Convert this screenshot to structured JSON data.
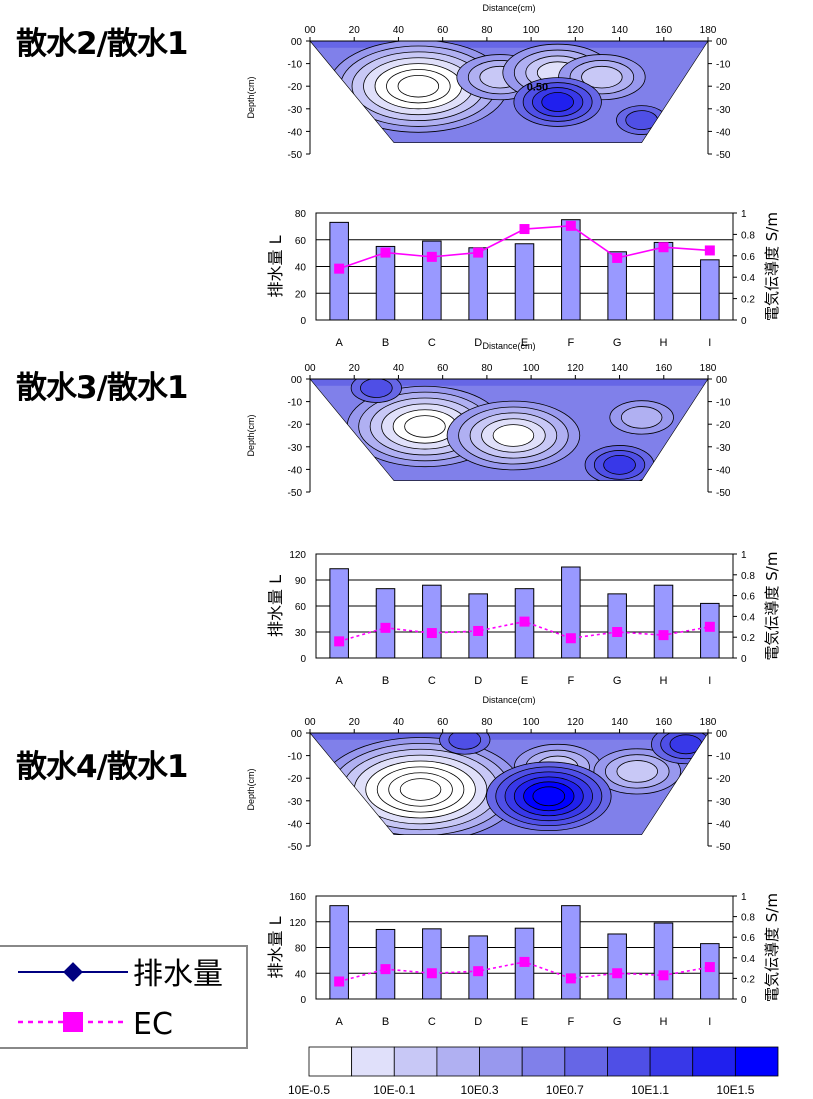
{
  "titles": [
    "散水2/散水1",
    "散水3/散水1",
    "散水4/散水1"
  ],
  "section_labels": {
    "distance_label": "Distance(cm)",
    "depth_label": "Depth(cm)",
    "drain_axis_label": "排水量 L",
    "ec_axis_label": "電気伝導度 S/m"
  },
  "legend": {
    "series": [
      {
        "name": "排水量",
        "color": "#000080",
        "style": "solid",
        "marker": "diamond"
      },
      {
        "name": "EC",
        "color": "#ff00ff",
        "style": "dashed",
        "marker": "square"
      }
    ]
  },
  "colorbar": {
    "colors": [
      "#ffffff",
      "#e0e0fa",
      "#c8c8f6",
      "#b0b0f2",
      "#9898ee",
      "#8080ea",
      "#6666e6",
      "#4f4fe6",
      "#3838e8",
      "#2020ee",
      "#0000ff"
    ],
    "tick_labels": [
      "10E-0.5",
      "10E-0.1",
      "10E0.3",
      "10E0.7",
      "10E1.1",
      "10E1.5"
    ]
  },
  "chart_data": [
    {
      "type": "heatmap",
      "title": "散水2/散水1",
      "xlabel": "Distance(cm)",
      "ylabel": "Depth(cm)",
      "xticks": [
        "00",
        "20",
        "40",
        "60",
        "80",
        "100",
        "120",
        "140",
        "160",
        "180"
      ],
      "yticks": [
        "00",
        "-10",
        "-20",
        "-30",
        "-40",
        "-50"
      ],
      "xlim": [
        0,
        180
      ],
      "ylim": [
        -50,
        0
      ],
      "annotations": [
        "0.50"
      ],
      "lows": [
        {
          "x": 49,
          "y": -20,
          "depth": 7
        },
        {
          "x": 86,
          "y": -16,
          "depth": 3
        },
        {
          "x": 112,
          "y": -14,
          "depth": 4
        },
        {
          "x": 132,
          "y": -16,
          "depth": 3
        }
      ],
      "highs": [
        {
          "x": 112,
          "y": -27,
          "depth": 4
        },
        {
          "x": 150,
          "y": -35,
          "depth": 2
        }
      ]
    },
    {
      "type": "bar",
      "title": "散水2/散水1",
      "categories": [
        "A",
        "B",
        "C",
        "D",
        "E",
        "F",
        "G",
        "H",
        "I"
      ],
      "ylabel": "排水量 L",
      "y2label": "電気伝導度 S/m",
      "ylim": [
        0,
        80
      ],
      "yticks": [
        "0",
        "20",
        "40",
        "60",
        "80"
      ],
      "y2lim": [
        0,
        1
      ],
      "y2ticks": [
        "0",
        "0.2",
        "0.4",
        "0.6",
        "0.8",
        "1"
      ],
      "ec_line_style": "solid",
      "series": [
        {
          "name": "排水量",
          "values": [
            73,
            55,
            59,
            54,
            57,
            75,
            51,
            58,
            45
          ]
        },
        {
          "name": "EC",
          "values": [
            0.48,
            0.63,
            0.59,
            0.63,
            0.85,
            0.88,
            0.58,
            0.68,
            0.65
          ]
        }
      ]
    },
    {
      "type": "heatmap",
      "title": "散水3/散水1",
      "xlabel": "Distance(cm)",
      "ylabel": "Depth(cm)",
      "xticks": [
        "00",
        "20",
        "40",
        "60",
        "80",
        "100",
        "120",
        "140",
        "160",
        "180"
      ],
      "yticks": [
        "00",
        "-10",
        "-20",
        "-30",
        "-40",
        "-50"
      ],
      "xlim": [
        0,
        180
      ],
      "ylim": [
        -50,
        0
      ],
      "annotations": [],
      "lows": [
        {
          "x": 52,
          "y": -21,
          "depth": 6
        },
        {
          "x": 92,
          "y": -25,
          "depth": 5
        },
        {
          "x": 150,
          "y": -17,
          "depth": 2
        }
      ],
      "highs": [
        {
          "x": 140,
          "y": -38,
          "depth": 3
        },
        {
          "x": 30,
          "y": -4,
          "depth": 2
        }
      ]
    },
    {
      "type": "bar",
      "title": "散水3/散水1",
      "categories": [
        "A",
        "B",
        "C",
        "D",
        "E",
        "F",
        "G",
        "H",
        "I"
      ],
      "ylabel": "排水量 L",
      "y2label": "電気伝導度 S/m",
      "ylim": [
        0,
        120
      ],
      "yticks": [
        "0",
        "30",
        "60",
        "90",
        "120"
      ],
      "y2lim": [
        0,
        1
      ],
      "y2ticks": [
        "0",
        "0.2",
        "0.4",
        "0.6",
        "0.8",
        "1"
      ],
      "ec_line_style": "dashed",
      "series": [
        {
          "name": "排水量",
          "values": [
            103,
            80,
            84,
            74,
            80,
            105,
            74,
            84,
            63
          ]
        },
        {
          "name": "EC",
          "values": [
            0.16,
            0.29,
            0.24,
            0.26,
            0.35,
            0.19,
            0.25,
            0.22,
            0.3
          ]
        }
      ]
    },
    {
      "type": "heatmap",
      "title": "散水4/散水1",
      "xlabel": "Distance(cm)",
      "ylabel": "Depth(cm)",
      "xticks": [
        "00",
        "20",
        "40",
        "60",
        "80",
        "100",
        "120",
        "140",
        "160",
        "180"
      ],
      "yticks": [
        "00",
        "-10",
        "-20",
        "-30",
        "-40",
        "-50"
      ],
      "xlim": [
        0,
        180
      ],
      "ylim": [
        -50,
        0
      ],
      "annotations": [],
      "lows": [
        {
          "x": 50,
          "y": -25,
          "depth": 8
        },
        {
          "x": 112,
          "y": -15,
          "depth": 3
        },
        {
          "x": 148,
          "y": -17,
          "depth": 3
        }
      ],
      "highs": [
        {
          "x": 108,
          "y": -28,
          "depth": 6
        },
        {
          "x": 170,
          "y": -5,
          "depth": 3
        },
        {
          "x": 70,
          "y": -3,
          "depth": 2
        }
      ]
    },
    {
      "type": "bar",
      "title": "散水4/散水1",
      "categories": [
        "A",
        "B",
        "C",
        "D",
        "E",
        "F",
        "G",
        "H",
        "I"
      ],
      "ylabel": "排水量 L",
      "y2label": "電気伝導度 S/m",
      "ylim": [
        0,
        160
      ],
      "yticks": [
        "0",
        "40",
        "80",
        "120",
        "160"
      ],
      "y2lim": [
        0,
        1
      ],
      "y2ticks": [
        "0",
        "0.2",
        "0.4",
        "0.6",
        "0.8",
        "1"
      ],
      "ec_line_style": "dashed",
      "series": [
        {
          "name": "排水量",
          "values": [
            145,
            108,
            109,
            98,
            110,
            145,
            101,
            118,
            86
          ]
        },
        {
          "name": "EC",
          "values": [
            0.17,
            0.29,
            0.25,
            0.27,
            0.36,
            0.2,
            0.25,
            0.23,
            0.31
          ]
        }
      ]
    }
  ]
}
